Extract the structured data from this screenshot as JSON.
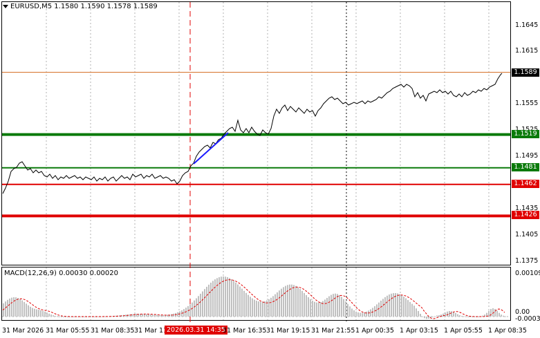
{
  "header": {
    "symbol_line": "EURUSD,M5  1.1580 1.1590 1.1578 1.1589"
  },
  "macd": {
    "label": "MACD(12,26,9) 0.00030 0.00020",
    "axis_labels": [
      "0.00109",
      "0.00",
      "-0.0003"
    ]
  },
  "price_axis": {
    "labels": [
      "1.1645",
      "1.1615",
      "1.1555",
      "1.1525",
      "1.1495",
      "1.1435",
      "1.1405",
      "1.1375"
    ]
  },
  "price_tags": [
    {
      "text": "1.1589",
      "color": "#000000"
    },
    {
      "text": "1.1519",
      "color": "#0a7a0a"
    },
    {
      "text": "1.1481",
      "color": "#0a7a0a"
    },
    {
      "text": "1.1462",
      "color": "#e00000"
    },
    {
      "text": "1.1426",
      "color": "#e00000"
    }
  ],
  "time_axis": {
    "labels": [
      "31 Mar 2026",
      "31 Mar 05:55",
      "31 Mar 08:35",
      "31 Mar 11",
      "31 Mar 16:35",
      "31 Mar 19:15",
      "31 Mar 21:55",
      "1 Apr 00:35",
      "1 Apr 03:15",
      "1 Apr 05:55",
      "1 Apr 08:35"
    ],
    "highlighted": "2026.03.31 14:35"
  },
  "levels": [
    {
      "price": 1.1519,
      "color": "#0a7a0a",
      "kind": "support"
    },
    {
      "price": 1.1481,
      "color": "#0a7a0a",
      "kind": "support"
    },
    {
      "price": 1.1462,
      "color": "#e00000",
      "kind": "resistance"
    },
    {
      "price": 1.1426,
      "color": "#e00000",
      "kind": "resistance"
    },
    {
      "price": 1.159,
      "color": "#d2691e",
      "kind": "current"
    }
  ],
  "colors": {
    "price_line": "#000000",
    "trend_line": "#1a1aff",
    "macd_hist": "#c0c0c0",
    "macd_signal": "#e00000",
    "vertical_marker": "#e00000"
  }
}
